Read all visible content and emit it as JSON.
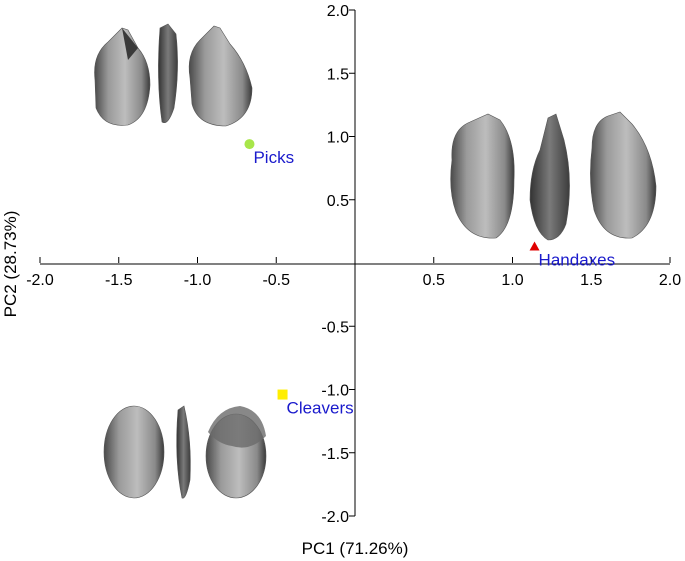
{
  "chart_data": {
    "type": "scatter",
    "title": "",
    "xlabel": "PC1 (71.26%)",
    "ylabel": "PC2 (28.73%)",
    "xlim": [
      -2.0,
      2.0
    ],
    "ylim": [
      -2.0,
      2.0
    ],
    "x_ticks": [
      {
        "value": -2.0,
        "label": "-2.0"
      },
      {
        "value": -1.5,
        "label": "-1.5"
      },
      {
        "value": -1.0,
        "label": "-1.0"
      },
      {
        "value": -0.5,
        "label": "-0.5"
      },
      {
        "value": 0.5,
        "label": "0.5"
      },
      {
        "value": 1.0,
        "label": "1.0"
      },
      {
        "value": 1.5,
        "label": "1.5"
      },
      {
        "value": 2.0,
        "label": "2.0"
      }
    ],
    "y_ticks": [
      {
        "value": 2.0,
        "label": "2.0"
      },
      {
        "value": 1.5,
        "label": "1.5"
      },
      {
        "value": 1.0,
        "label": "1.0"
      },
      {
        "value": 0.5,
        "label": "0.5"
      },
      {
        "value": -0.5,
        "label": "-0.5"
      },
      {
        "value": -1.0,
        "label": "-1.0"
      },
      {
        "value": -1.5,
        "label": "-1.5"
      },
      {
        "value": -2.0,
        "label": "-2.0"
      }
    ],
    "grid": false,
    "axes_cross_at_origin": true,
    "series": [
      {
        "name": "Picks",
        "x": -0.67,
        "y": 0.94,
        "marker": "circle",
        "color": "#a8e64a"
      },
      {
        "name": "Handaxes",
        "x": 1.14,
        "y": 0.13,
        "marker": "triangle",
        "color": "#e00000"
      },
      {
        "name": "Cleavers",
        "x": -0.46,
        "y": -1.04,
        "marker": "square",
        "color": "#ffee00"
      }
    ],
    "label_color": "#1a1acc",
    "illustrations": [
      {
        "group": "Picks",
        "description": "three views of a pick stone tool"
      },
      {
        "group": "Handaxes",
        "description": "three views of a handaxe stone tool"
      },
      {
        "group": "Cleavers",
        "description": "three views of a cleaver stone tool"
      }
    ]
  }
}
